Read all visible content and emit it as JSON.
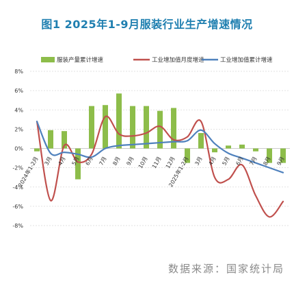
{
  "header": {
    "title": "图1 2025年1-9月服装行业生产增速情况"
  },
  "footer": {
    "source": "数据来源：国家统计局"
  },
  "chart_data": {
    "type": "bar",
    "title": "图1 2025年1-9月服装行业生产增速情况",
    "categories": [
      "2024年1-2月",
      "3月",
      "4月",
      "5月",
      "6月",
      "7月",
      "8月",
      "9月",
      "10月",
      "11月",
      "12月",
      "2025年1-2月",
      "3月",
      "4月",
      "5月",
      "6月",
      "7月",
      "8月",
      "9月"
    ],
    "ylim": [
      -8,
      8
    ],
    "yticks": [
      -8,
      -6,
      -4,
      -2,
      0,
      2,
      4,
      6,
      8
    ],
    "ytick_labels": [
      "-8%",
      "-6%",
      "-4%",
      "-2%",
      "0%",
      "2%",
      "4%",
      "6%",
      "8%"
    ],
    "legend_position": "top",
    "series": [
      {
        "name": "服装产量累计增速",
        "type": "bar",
        "color": "#8dbd4a",
        "values": [
          -0.3,
          1.9,
          1.8,
          -3.2,
          4.4,
          4.5,
          5.7,
          4.4,
          4.4,
          3.9,
          4.2,
          -1.5,
          1.6,
          -0.4,
          0.3,
          0.4,
          -0.3,
          -1.5,
          -1.5
        ]
      },
      {
        "name": "工业增加值月度增速",
        "type": "line",
        "color": "#c0504d",
        "values": [
          2.8,
          -5.4,
          0.3,
          -1.4,
          -0.6,
          3.3,
          1.5,
          1.3,
          1.6,
          2.3,
          0.9,
          1.2,
          2.8,
          -3.0,
          -3.2,
          -1.7,
          -4.9,
          -7.1,
          -5.5
        ]
      },
      {
        "name": "工业增加值累计增速",
        "type": "line",
        "color": "#4f81bd",
        "values": [
          2.8,
          -0.5,
          -0.4,
          -0.6,
          -0.9,
          0.0,
          0.3,
          0.4,
          0.5,
          0.6,
          0.7,
          0.8,
          1.9,
          0.5,
          -0.5,
          -1.0,
          -1.5,
          -2.0,
          -2.5
        ]
      }
    ]
  }
}
